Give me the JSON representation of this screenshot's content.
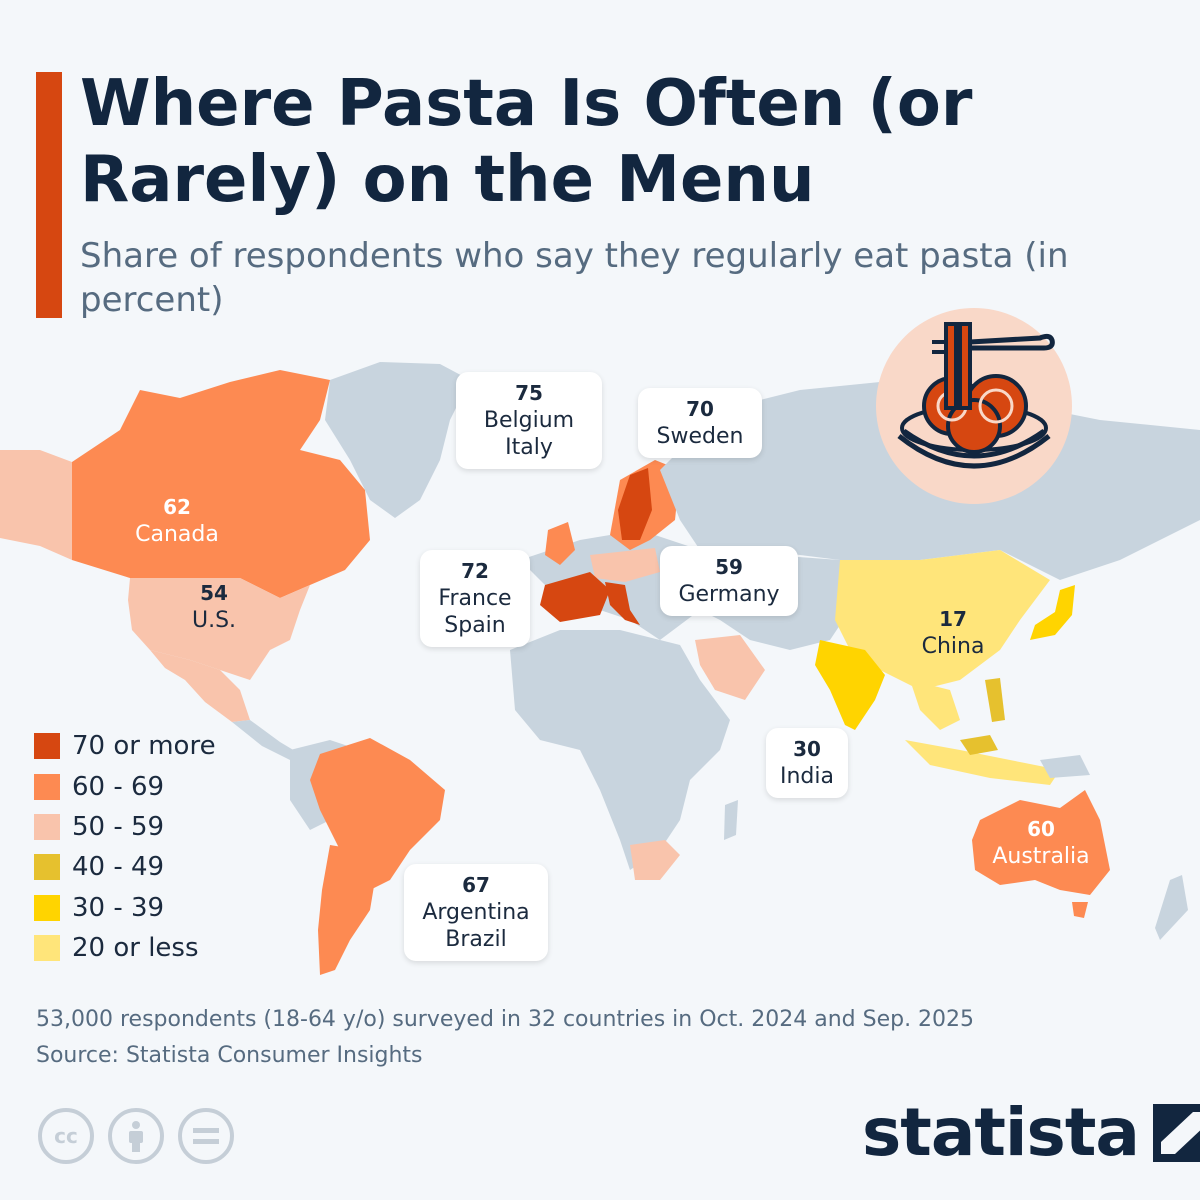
{
  "header": {
    "title": "Where Pasta Is Often (or Rarely) on the Menu",
    "subtitle": "Share of respondents who say they regularly eat pasta (in percent)"
  },
  "colors": {
    "70_or_more": "#d64711",
    "60_69": "#fd8a52",
    "50_59": "#f9c4ac",
    "40_49": "#e6c12e",
    "30_39": "#ffd400",
    "20_or_less": "#ffe57a",
    "no_data": "#c8d4de",
    "accent": "#d64711"
  },
  "legend": [
    {
      "label": "70 or more",
      "color": "#d64711"
    },
    {
      "label": "60 - 69",
      "color": "#fd8a52"
    },
    {
      "label": "50 - 59",
      "color": "#f9c4ac"
    },
    {
      "label": "40 - 49",
      "color": "#e6c12e"
    },
    {
      "label": "30 - 39",
      "color": "#ffd400"
    },
    {
      "label": "20 or less",
      "color": "#ffe57a"
    }
  ],
  "labels": {
    "belgium_italy": {
      "value": "75",
      "name": "Belgium\nItaly"
    },
    "sweden": {
      "value": "70",
      "name": "Sweden"
    },
    "canada": {
      "value": "62",
      "name": "Canada"
    },
    "us": {
      "value": "54",
      "name": "U.S."
    },
    "france_spain": {
      "value": "72",
      "name": "France\nSpain"
    },
    "germany": {
      "value": "59",
      "name": "Germany"
    },
    "china": {
      "value": "17",
      "name": "China"
    },
    "india": {
      "value": "30",
      "name": "India"
    },
    "australia": {
      "value": "60",
      "name": "Australia"
    },
    "argentina_brazil": {
      "value": "67",
      "name": "Argentina\nBrazil"
    }
  },
  "footer": {
    "note": "53,000 respondents (18-64 y/o) surveyed in 32 countries in Oct. 2024 and Sep. 2025",
    "source": "Source: Statista Consumer Insights",
    "license_icons": [
      "cc-icon",
      "attribution-icon",
      "no-derivatives-icon"
    ],
    "brand": "statista"
  }
}
